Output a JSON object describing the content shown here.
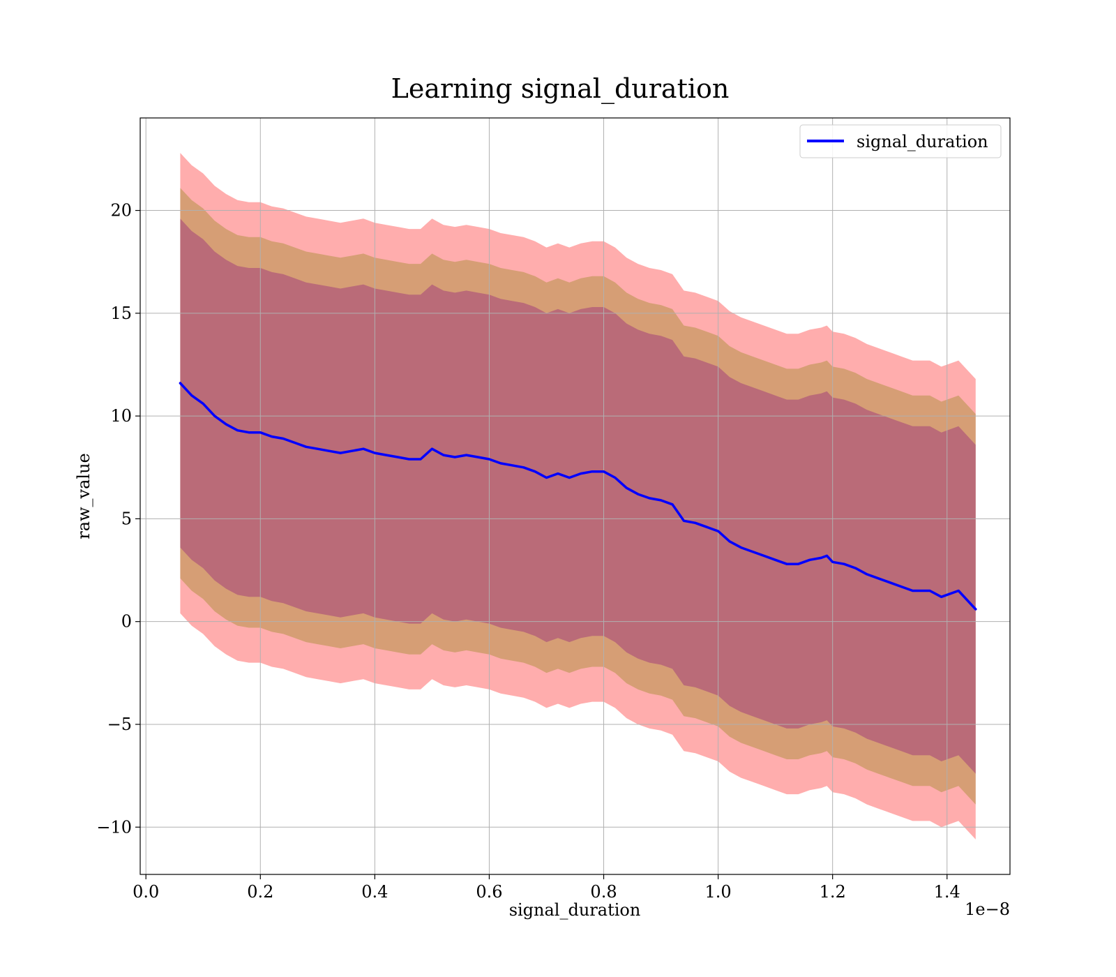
{
  "chart_data": {
    "type": "line",
    "title": "Learning signal_duration",
    "xlabel": "signal_duration",
    "ylabel": "raw_value",
    "x_offset_label": "1e−8",
    "xlim": [
      -0.01,
      1.51
    ],
    "ylim": [
      -12.3,
      24.5
    ],
    "x_ticks": [
      0.0,
      0.2,
      0.4,
      0.6,
      0.8,
      1.0,
      1.2,
      1.4
    ],
    "x_tick_labels": [
      "0.0",
      "0.2",
      "0.4",
      "0.6",
      "0.8",
      "1.0",
      "1.2",
      "1.4"
    ],
    "y_ticks": [
      -10,
      -5,
      0,
      5,
      10,
      15,
      20
    ],
    "y_tick_labels": [
      "−10",
      "−5",
      "0",
      "5",
      "10",
      "15",
      "20"
    ],
    "grid": true,
    "legend": {
      "position": "top-right",
      "entries": [
        "signal_duration"
      ]
    },
    "colors": {
      "line": "#0000ff",
      "band_outer": "#ff0000",
      "band_middle": "#808000",
      "band_inner": "#800080"
    },
    "band_widths": {
      "inner": 8.0,
      "middle": 9.5,
      "outer": 11.2
    },
    "series": [
      {
        "name": "signal_duration",
        "x": [
          0.06,
          0.08,
          0.1,
          0.12,
          0.14,
          0.16,
          0.18,
          0.2,
          0.22,
          0.24,
          0.26,
          0.28,
          0.3,
          0.32,
          0.34,
          0.36,
          0.38,
          0.4,
          0.42,
          0.44,
          0.46,
          0.48,
          0.5,
          0.52,
          0.54,
          0.56,
          0.58,
          0.6,
          0.62,
          0.64,
          0.66,
          0.68,
          0.7,
          0.72,
          0.74,
          0.76,
          0.78,
          0.8,
          0.82,
          0.84,
          0.86,
          0.88,
          0.9,
          0.92,
          0.94,
          0.96,
          0.98,
          1.0,
          1.02,
          1.04,
          1.06,
          1.08,
          1.1,
          1.12,
          1.14,
          1.16,
          1.18,
          1.19,
          1.2,
          1.22,
          1.24,
          1.26,
          1.28,
          1.3,
          1.32,
          1.34,
          1.37,
          1.39,
          1.42,
          1.45
        ],
        "y": [
          11.6,
          11.0,
          10.6,
          10.0,
          9.6,
          9.3,
          9.2,
          9.2,
          9.0,
          8.9,
          8.7,
          8.5,
          8.4,
          8.3,
          8.2,
          8.3,
          8.4,
          8.2,
          8.1,
          8.0,
          7.9,
          7.9,
          8.4,
          8.1,
          8.0,
          8.1,
          8.0,
          7.9,
          7.7,
          7.6,
          7.5,
          7.3,
          7.0,
          7.2,
          7.0,
          7.2,
          7.3,
          7.3,
          7.0,
          6.5,
          6.2,
          6.0,
          5.9,
          5.7,
          4.9,
          4.8,
          4.6,
          4.4,
          3.9,
          3.6,
          3.4,
          3.2,
          3.0,
          2.8,
          2.8,
          3.0,
          3.1,
          3.2,
          2.9,
          2.8,
          2.6,
          2.3,
          2.1,
          1.9,
          1.7,
          1.5,
          1.5,
          1.2,
          1.5,
          0.6
        ]
      }
    ]
  }
}
